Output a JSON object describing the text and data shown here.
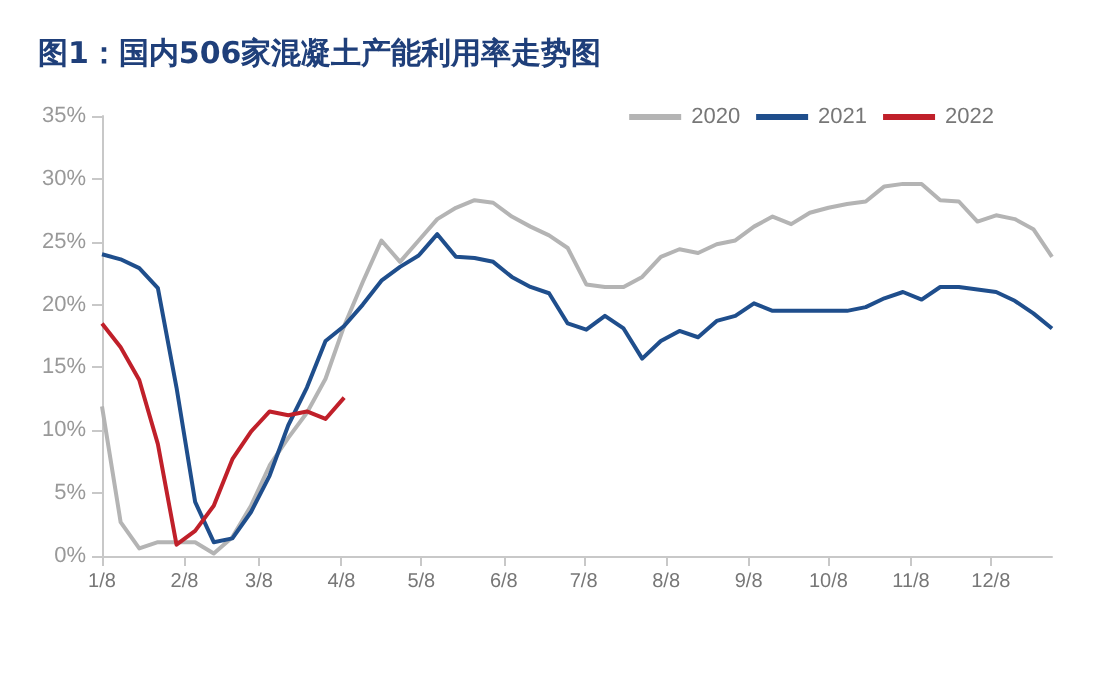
{
  "chart_data": {
    "type": "line",
    "title": "图1：国内506家混凝土产能利用率走势图",
    "x": [
      "--01-08",
      "--01-15",
      "--01-22",
      "--01-29",
      "--02-05",
      "--02-12",
      "--02-19",
      "--02-26",
      "--03-05",
      "--03-12",
      "--03-19",
      "--03-26",
      "--04-02",
      "--04-09",
      "--04-16",
      "--04-23",
      "--04-30",
      "--05-07",
      "--05-14",
      "--05-21",
      "--05-28",
      "--06-04",
      "--06-11",
      "--06-18",
      "--06-25",
      "--07-02",
      "--07-09",
      "--07-16",
      "--07-23",
      "--07-30",
      "--08-06",
      "--08-13",
      "--08-20",
      "--08-27",
      "--09-03",
      "--09-10",
      "--09-17",
      "--09-24",
      "--10-01",
      "--10-08",
      "--10-15",
      "--10-22",
      "--10-29",
      "--11-05",
      "--11-12",
      "--11-19",
      "--11-26",
      "--12-03",
      "--12-10",
      "--12-17",
      "--12-24",
      "--12-31"
    ],
    "series": [
      {
        "name": "2020",
        "color": "#b4b4b4",
        "values": [
          11.9,
          2.7,
          0.6,
          1.1,
          1.1,
          1.1,
          0.2,
          1.5,
          4,
          7.2,
          9.4,
          11.4,
          14.1,
          18.3,
          21.8,
          25.1,
          23.4,
          25.1,
          26.8,
          27.7,
          28.3,
          28.1,
          27,
          26.2,
          25.5,
          24.5,
          21.6,
          21.4,
          21.4,
          22.2,
          23.8,
          24.4,
          24.1,
          24.8,
          25.1,
          26.2,
          27,
          26.4,
          27.3,
          27.7,
          28,
          28.2,
          29.4,
          29.6,
          29.6,
          28.3,
          28.2,
          26.6,
          27.1,
          26.8,
          26,
          23.8
        ]
      },
      {
        "name": "2021",
        "color": "#1f4e8c",
        "values": [
          24,
          23.6,
          22.9,
          21.3,
          13.4,
          4.3,
          1.1,
          1.4,
          3.5,
          6.4,
          10.4,
          13.4,
          17.1,
          18.3,
          20,
          21.9,
          23,
          23.9,
          25.6,
          23.8,
          23.7,
          23.4,
          22.2,
          21.4,
          20.9,
          18.5,
          18,
          19.1,
          18.1,
          15.7,
          17.1,
          17.9,
          17.4,
          18.7,
          19.1,
          20.1,
          19.5,
          19.5,
          19.5,
          19.5,
          19.5,
          19.8,
          20.5,
          21,
          20.4,
          21.4,
          21.4,
          21.2,
          21,
          20.3,
          19.3,
          18.1
        ]
      },
      {
        "name": "2022",
        "color": "#c0202a",
        "x": [
          "--01-08",
          "--01-15",
          "--01-22",
          "--01-29",
          "--02-05",
          "--02-12",
          "--02-19",
          "--02-26",
          "--03-05",
          "--03-12",
          "--03-19",
          "--03-26",
          "--04-02",
          "--04-09"
        ],
        "values": [
          18.5,
          16.6,
          14,
          8.9,
          0.9,
          2,
          4,
          7.7,
          9.9,
          11.5,
          11.2,
          11.5,
          10.9,
          12.6
        ]
      }
    ],
    "xlim": [
      "--01-08",
      "--12-31"
    ],
    "xticks": [
      {
        "value": "--01-08",
        "label": "1/8"
      },
      {
        "value": "--02-08",
        "label": "2/8"
      },
      {
        "value": "--03-08",
        "label": "3/8"
      },
      {
        "value": "--04-08",
        "label": "4/8"
      },
      {
        "value": "--05-08",
        "label": "5/8"
      },
      {
        "value": "--06-08",
        "label": "6/8"
      },
      {
        "value": "--07-08",
        "label": "7/8"
      },
      {
        "value": "--08-08",
        "label": "8/8"
      },
      {
        "value": "--09-08",
        "label": "9/8"
      },
      {
        "value": "--10-08",
        "label": "10/8"
      },
      {
        "value": "--11-08",
        "label": "11/8"
      },
      {
        "value": "--12-08",
        "label": "12/8"
      }
    ],
    "ylim": [
      0,
      35
    ],
    "yticks": [
      {
        "value": 0,
        "label": "0%"
      },
      {
        "value": 5,
        "label": "5%"
      },
      {
        "value": 10,
        "label": "10%"
      },
      {
        "value": 15,
        "label": "15%"
      },
      {
        "value": 20,
        "label": "20%"
      },
      {
        "value": 25,
        "label": "25%"
      },
      {
        "value": 30,
        "label": "30%"
      },
      {
        "value": 35,
        "label": "35%"
      }
    ],
    "grid": false,
    "legend": "top right",
    "marker": "none",
    "line_style": "solid"
  }
}
